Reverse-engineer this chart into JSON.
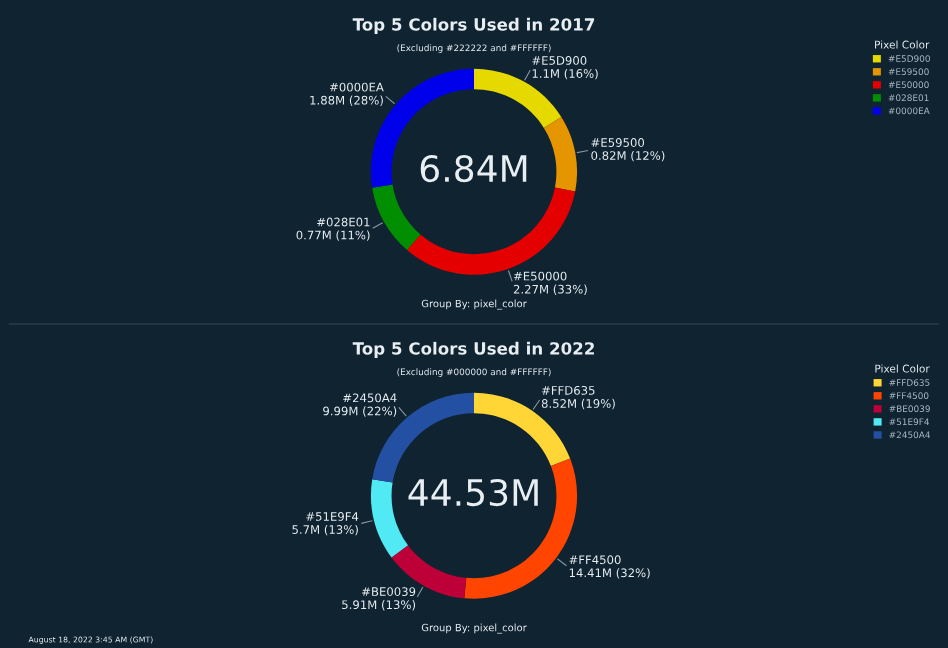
{
  "chart_data": [
    {
      "type": "donut",
      "title": "Top 5 Colors Used in 2017",
      "subtitle": "(Excluding #222222 and #FFFFFF)",
      "legend_title": "Pixel Color",
      "legend": "top right",
      "categories": [
        "#E5D900",
        "#E59500",
        "#E50000",
        "#028E01",
        "#0000EA"
      ],
      "values": [
        1100000,
        820000,
        2270000,
        770000,
        1880000
      ],
      "value_labels": [
        "1.1M (16%)",
        "0.82M (12%)",
        "2.27M (33%)",
        "0.77M (11%)",
        "1.88M (28%)"
      ],
      "colors": [
        "#e5d900",
        "#e59500",
        "#e50000",
        "#028e01",
        "#0000ea"
      ],
      "annotations": [
        "6.84M",
        "Group By: pixel_color"
      ]
    },
    {
      "type": "donut",
      "title": "Top 5 Colors Used in 2022",
      "subtitle": "(Excluding #000000 and #FFFFFF)",
      "legend_title": "Pixel Color",
      "legend": "top right",
      "categories": [
        "#FFD635",
        "#FF4500",
        "#BE0039",
        "#51E9F4",
        "#2450A4"
      ],
      "values": [
        8520000,
        14410000,
        5910000,
        5700000,
        9990000
      ],
      "value_labels": [
        "8.52M (19%)",
        "14.41M (32%)",
        "5.91M (13%)",
        "5.7M (13%)",
        "9.99M (22%)"
      ],
      "colors": [
        "#ffd635",
        "#ff4500",
        "#be0039",
        "#51e9f4",
        "#2450a4"
      ],
      "annotations": [
        "44.53M",
        "Group By: pixel_color",
        "August 18, 2022 3:45 AM (GMT)"
      ]
    }
  ]
}
